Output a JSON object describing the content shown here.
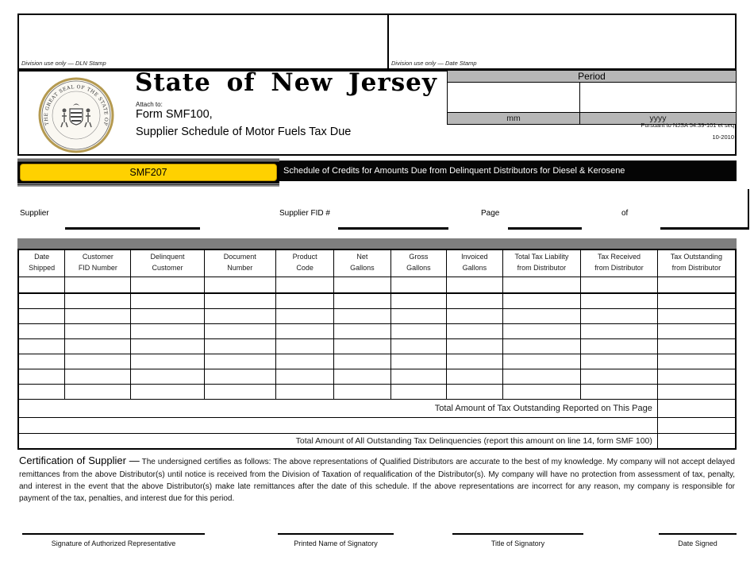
{
  "stamps": {
    "dln_label": "Division use only — DLN Stamp",
    "date_label": "Division use only — Date Stamp"
  },
  "header": {
    "state_title": "State of New Jersey",
    "seal_text": "THE GREAT SEAL OF THE STATE OF NEW JERSEY",
    "attach_to": "Attach to:",
    "form_line1": "Form SMF100,",
    "form_line2": "Supplier Schedule of Motor Fuels Tax Due",
    "pursuant": "Pursuant to NJSA 54:39-101 et seq",
    "revision": "10-2010"
  },
  "period": {
    "title": "Period",
    "month_label": "mm",
    "year_label": "yyyy",
    "month_value": "",
    "year_value": ""
  },
  "banner": {
    "code": "SMF207",
    "title": "Schedule of Credits for Amounts Due from Delinquent Distributors for Diesel & Kerosene",
    "accent_color": "#FFD100"
  },
  "supplier_row": {
    "supplier_label": "Supplier",
    "supplier_value": "",
    "fid_label": "Supplier FID #",
    "fid_value": "",
    "page_label": "Page",
    "page_value": "",
    "of_label": "of",
    "of_value": ""
  },
  "table": {
    "columns": [
      "Date\nShipped",
      "Customer\nFID Number",
      "Delinquent\nCustomer",
      "Document\nNumber",
      "Product\nCode",
      "Net\nGallons",
      "Gross\nGallons",
      "Invoiced\nGallons",
      "Total Tax Liability\nfrom Distributor",
      "Tax Received\nfrom Distributor",
      "Tax Outstanding\nfrom Distributor"
    ],
    "empty_row_count": 8,
    "totals": {
      "page_total_label": "Total Amount of Tax Outstanding Reported on This Page",
      "page_total_value": "",
      "all_total_label": "Total Amount of All Outstanding Tax Delinquencies (report this amount on line 14, form SMF 100)",
      "all_total_value": ""
    }
  },
  "certification": {
    "heading": "Certification of Supplier —",
    "body": "The undersigned certifies as follows: The above representations of Qualified Distributors are accurate to the best of my knowledge.  My company will not accept delayed remittances from the above Distributor(s) until notice is received from the Division of Taxation of requalification of the Distributor(s).  My company will have no protection from assessment of tax, penalty, and interest in the event that the above Distributor(s) make late remittances after the date of this schedule.  If the above representations are incorrect for any reason, my company is responsible for payment of the tax, penalties, and interest due for this period."
  },
  "signatures": [
    {
      "label": "Signature of Authorized Representative"
    },
    {
      "label": "Printed Name of Signatory"
    },
    {
      "label": "Title of Signatory"
    },
    {
      "label": "Date Signed"
    }
  ]
}
